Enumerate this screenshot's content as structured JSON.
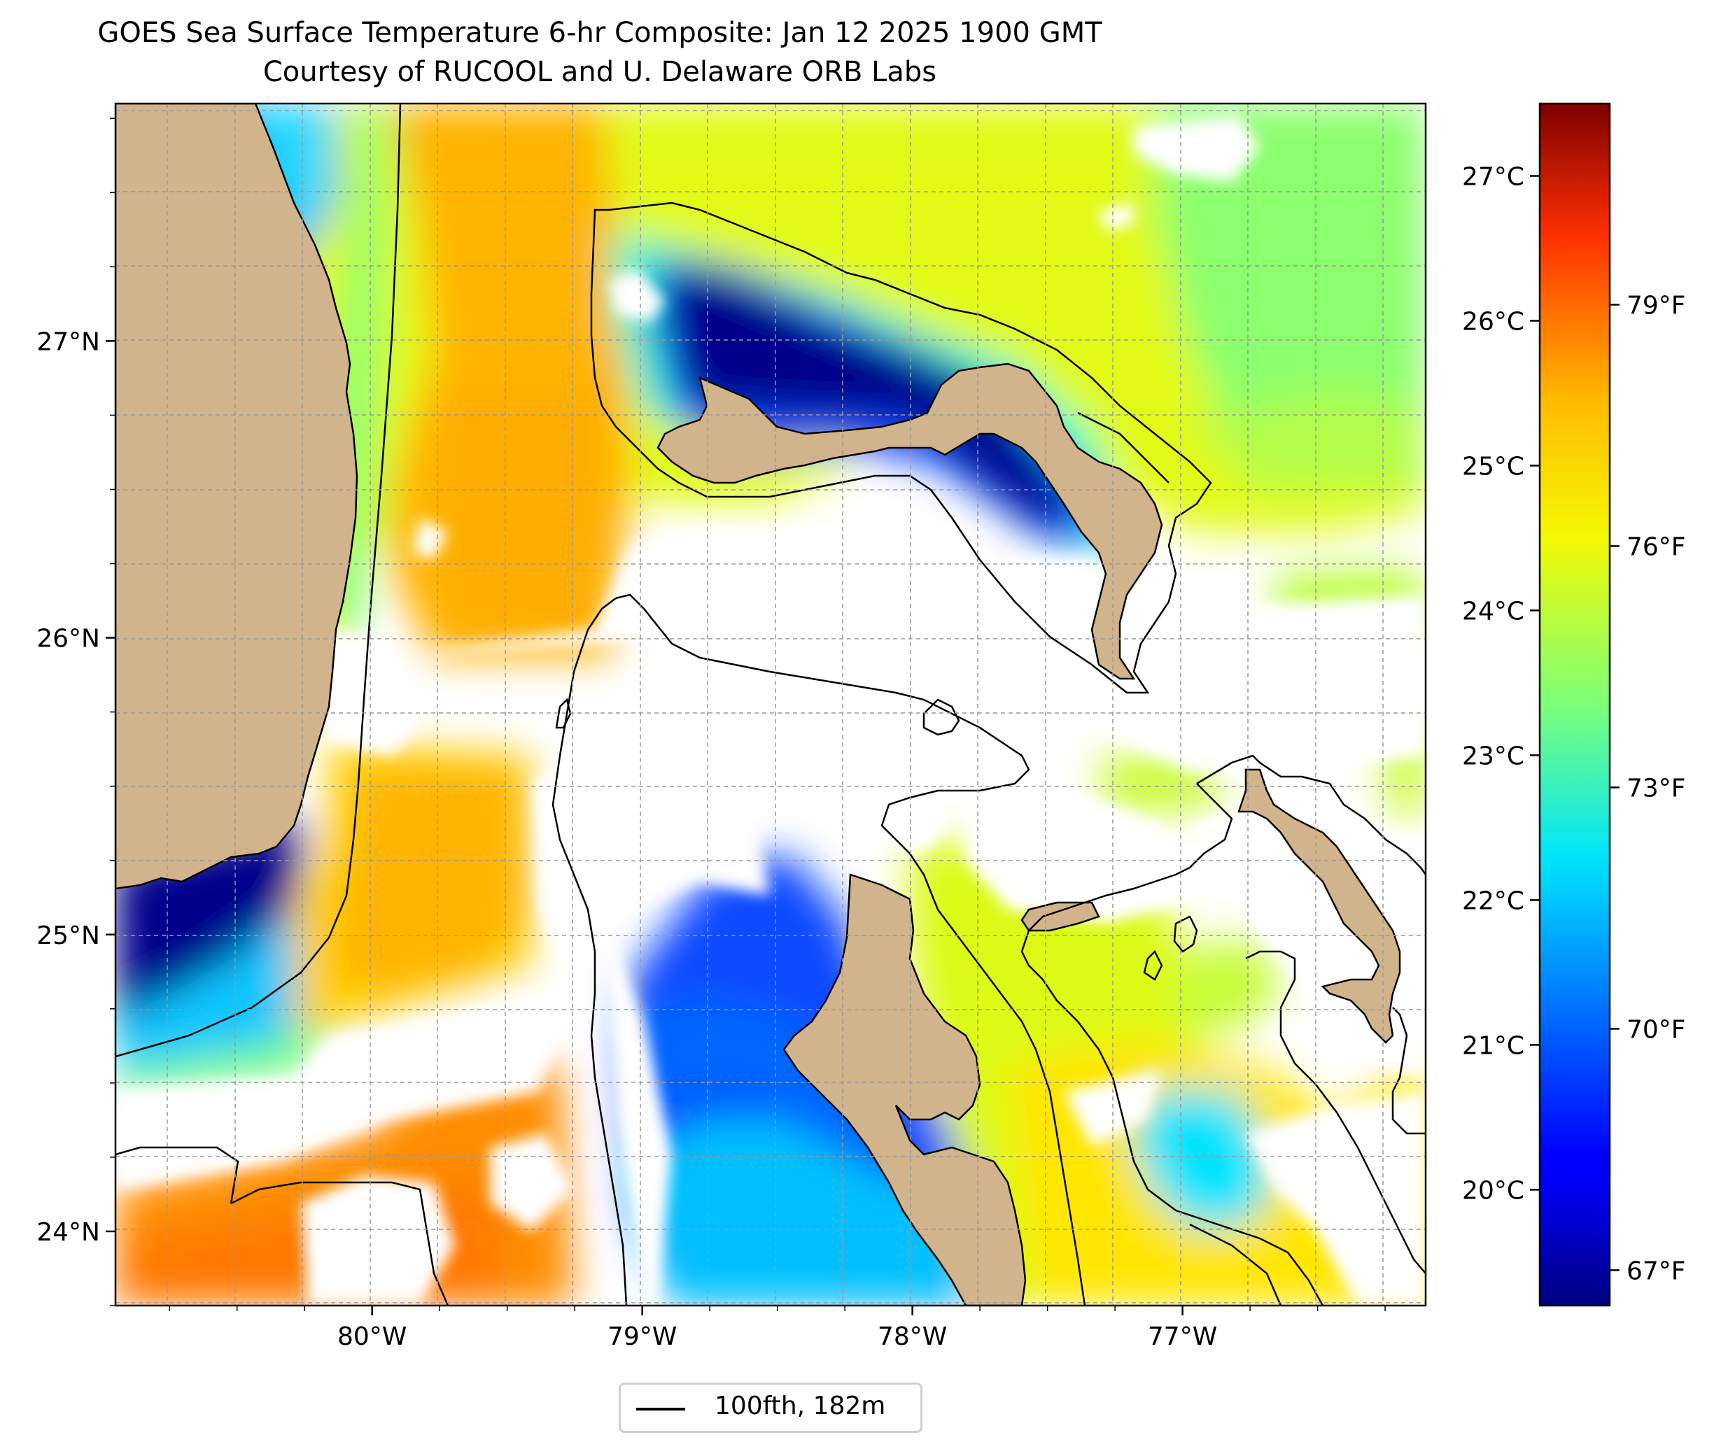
{
  "title_line1": "GOES Sea Surface Temperature 6-hr Composite: Jan 12 2025 1900 GMT",
  "title_line2": "Courtesy of RUCOOL and U. Delaware ORB Labs",
  "map": {
    "lon_range": [
      -80.95,
      -76.1
    ],
    "lat_range": [
      23.75,
      27.8
    ],
    "lon_ticks": [
      {
        "value": -80,
        "label": "80°W"
      },
      {
        "value": -79,
        "label": "79°W"
      },
      {
        "value": -78,
        "label": "78°W"
      },
      {
        "value": -77,
        "label": "77°W"
      }
    ],
    "lat_ticks": [
      {
        "value": 24,
        "label": "24°N"
      },
      {
        "value": 25,
        "label": "25°N"
      },
      {
        "value": 26,
        "label": "26°N"
      },
      {
        "value": 27,
        "label": "27°N"
      }
    ],
    "gridlines": true,
    "land_color": "#d2b48c",
    "no_data_color": "#ffffff"
  },
  "colorbar": {
    "colormap": "jet",
    "range_c": [
      19.2,
      27.5
    ],
    "celsius_ticks": [
      {
        "value": 20,
        "label": "20°C"
      },
      {
        "value": 21,
        "label": "21°C"
      },
      {
        "value": 22,
        "label": "22°C"
      },
      {
        "value": 23,
        "label": "23°C"
      },
      {
        "value": 24,
        "label": "24°C"
      },
      {
        "value": 25,
        "label": "25°C"
      },
      {
        "value": 26,
        "label": "26°C"
      },
      {
        "value": 27,
        "label": "27°C"
      }
    ],
    "fahrenheit_ticks": [
      {
        "value": 67,
        "label": "67°F"
      },
      {
        "value": 70,
        "label": "70°F"
      },
      {
        "value": 73,
        "label": "73°F"
      },
      {
        "value": 76,
        "label": "76°F"
      },
      {
        "value": 79,
        "label": "79°F"
      }
    ]
  },
  "legend": {
    "entry_label": "100fth, 182m",
    "line_color": "#000000"
  }
}
